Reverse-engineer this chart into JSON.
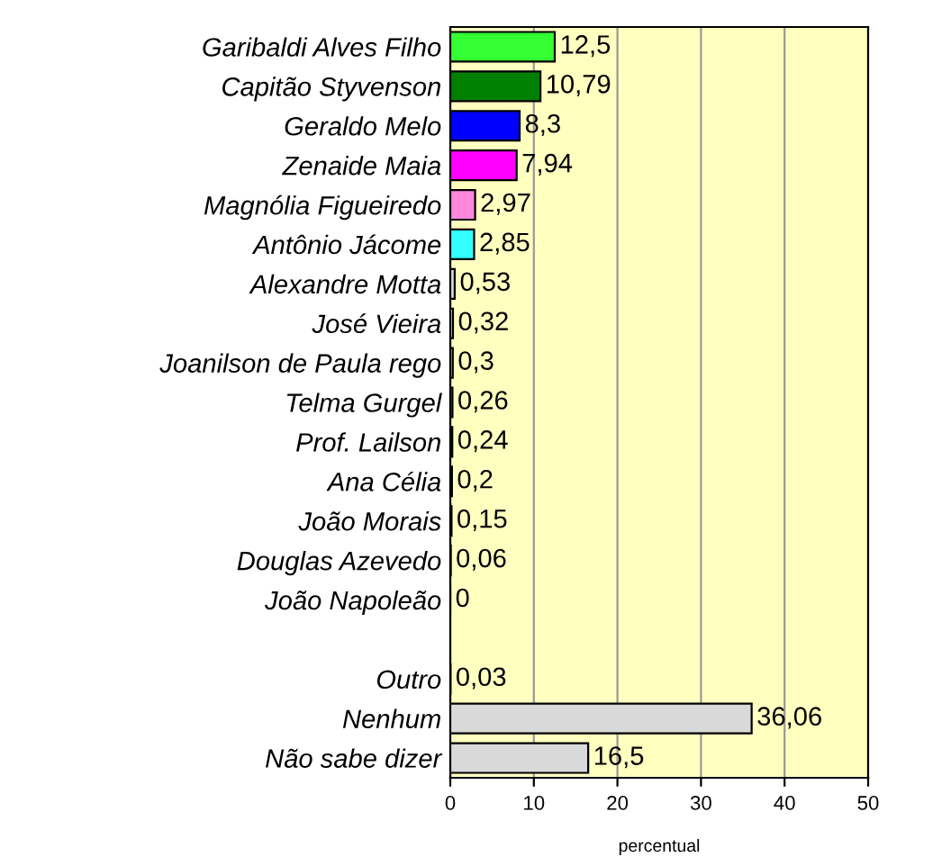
{
  "chart_data": {
    "type": "bar",
    "orientation": "horizontal",
    "xlabel": "percentual",
    "categories": [
      "Garibaldi Alves Filho",
      "Capitão Styvenson",
      "Geraldo Melo",
      "Zenaide Maia",
      "Magnólia Figueiredo",
      "Antônio Jácome",
      "Alexandre Motta",
      "José Vieira",
      "Joanilson de Paula rego",
      "Telma Gurgel",
      "Prof. Lailson",
      "Ana Célia",
      "João Morais",
      "Douglas Azevedo",
      "João Napoleão",
      null,
      "Outro",
      "Nenhum",
      "Não sabe dizer"
    ],
    "values": [
      12.5,
      10.79,
      8.3,
      7.94,
      2.97,
      2.85,
      0.53,
      0.32,
      0.3,
      0.26,
      0.24,
      0.2,
      0.15,
      0.06,
      0,
      null,
      0.03,
      36.06,
      16.5
    ],
    "value_labels": [
      "12,5",
      "10,79",
      "8,3",
      "7,94",
      "2,97",
      "2,85",
      "0,53",
      "0,32",
      "0,3",
      "0,26",
      "0,24",
      "0,2",
      "0,15",
      "0,06",
      "0",
      null,
      "0,03",
      "36,06",
      "16,5"
    ],
    "colors": [
      "#33ff33",
      "#008000",
      "#0000ff",
      "#ff00ff",
      "#ff88dd",
      "#33ffff",
      "#d9d9d9",
      "#d9d9d9",
      "#d9d9d9",
      "#d9d9d9",
      "#d9d9d9",
      "#d9d9d9",
      "#d9d9d9",
      "#d9d9d9",
      "#d9d9d9",
      "#d9d9d9",
      "#d9d9d9",
      "#d9d9d9",
      "#d9d9d9"
    ],
    "xlim": [
      0,
      50
    ],
    "xticks": [
      0,
      10,
      20,
      30,
      40,
      50
    ],
    "grid": "x",
    "legend": false
  }
}
